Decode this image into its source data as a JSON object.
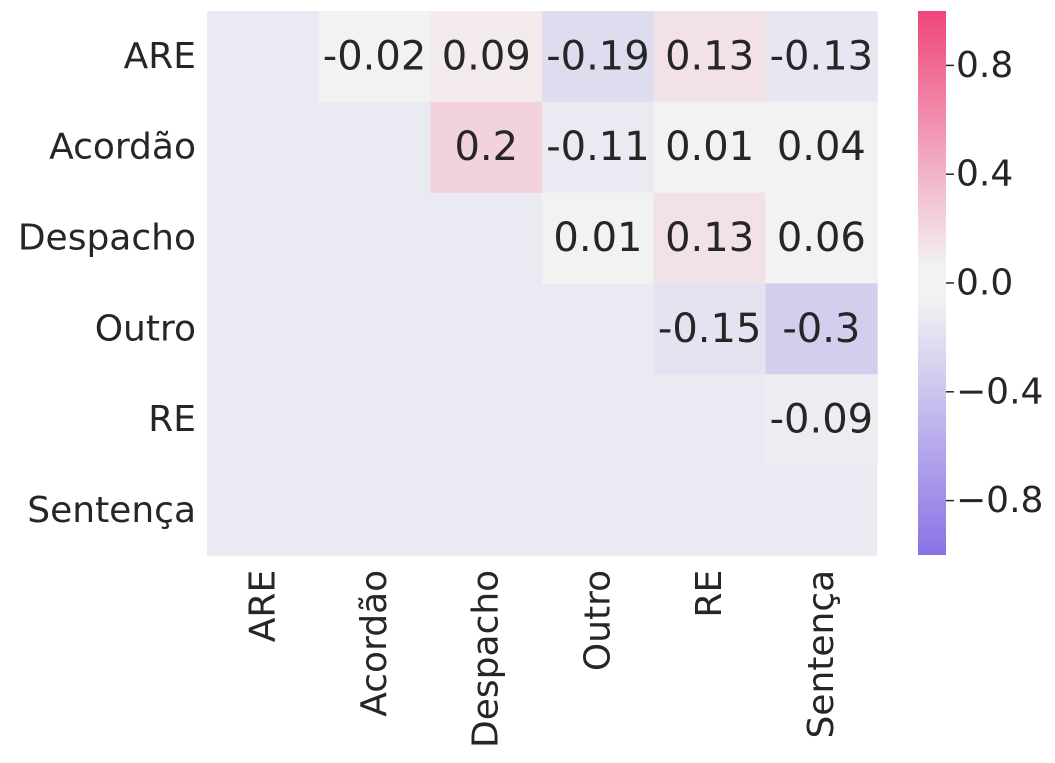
{
  "chart_data": {
    "type": "heatmap",
    "title": "",
    "xlabel": "",
    "ylabel": "",
    "categories": [
      "ARE",
      "Acordão",
      "Despacho",
      "Outro",
      "RE",
      "Sentença"
    ],
    "x_tick_labels": [
      "ARE",
      "Acordão",
      "Despacho",
      "Outro",
      "RE",
      "Sentença"
    ],
    "y_tick_labels": [
      "ARE",
      "Acordão",
      "Despacho",
      "Outro",
      "RE",
      "Sentença"
    ],
    "mask": "lower-triangle-and-diagonal",
    "values": [
      [
        null,
        -0.02,
        0.09,
        -0.19,
        0.13,
        -0.13
      ],
      [
        null,
        null,
        0.2,
        -0.11,
        0.01,
        0.04
      ],
      [
        null,
        null,
        null,
        0.01,
        0.13,
        0.06
      ],
      [
        null,
        null,
        null,
        null,
        -0.15,
        -0.3
      ],
      [
        null,
        null,
        null,
        null,
        null,
        -0.09
      ],
      [
        null,
        null,
        null,
        null,
        null,
        null
      ]
    ],
    "cell_labels": [
      [
        "",
        "-0.02",
        "0.09",
        "-0.19",
        "0.13",
        "-0.13"
      ],
      [
        "",
        "",
        "0.2",
        "-0.11",
        "0.01",
        "0.04"
      ],
      [
        "",
        "",
        "",
        "0.01",
        "0.13",
        "0.06"
      ],
      [
        "",
        "",
        "",
        "",
        "-0.15",
        "-0.3"
      ],
      [
        "",
        "",
        "",
        "",
        "",
        "-0.09"
      ],
      [
        "",
        "",
        "",
        "",
        "",
        ""
      ]
    ],
    "colorbar": {
      "range": [
        -1,
        1
      ],
      "ticks": [
        0.8,
        0.4,
        0.0,
        -0.4,
        -0.8
      ],
      "tick_labels": [
        "0.8",
        "0.4",
        "0.0",
        "−0.4",
        "−0.8"
      ],
      "neg_color": "#8a72e6",
      "zero_color": "#f2f2f2",
      "pos_color": "#f0457a"
    },
    "background_color": "#eaeaf2",
    "grid": false
  }
}
